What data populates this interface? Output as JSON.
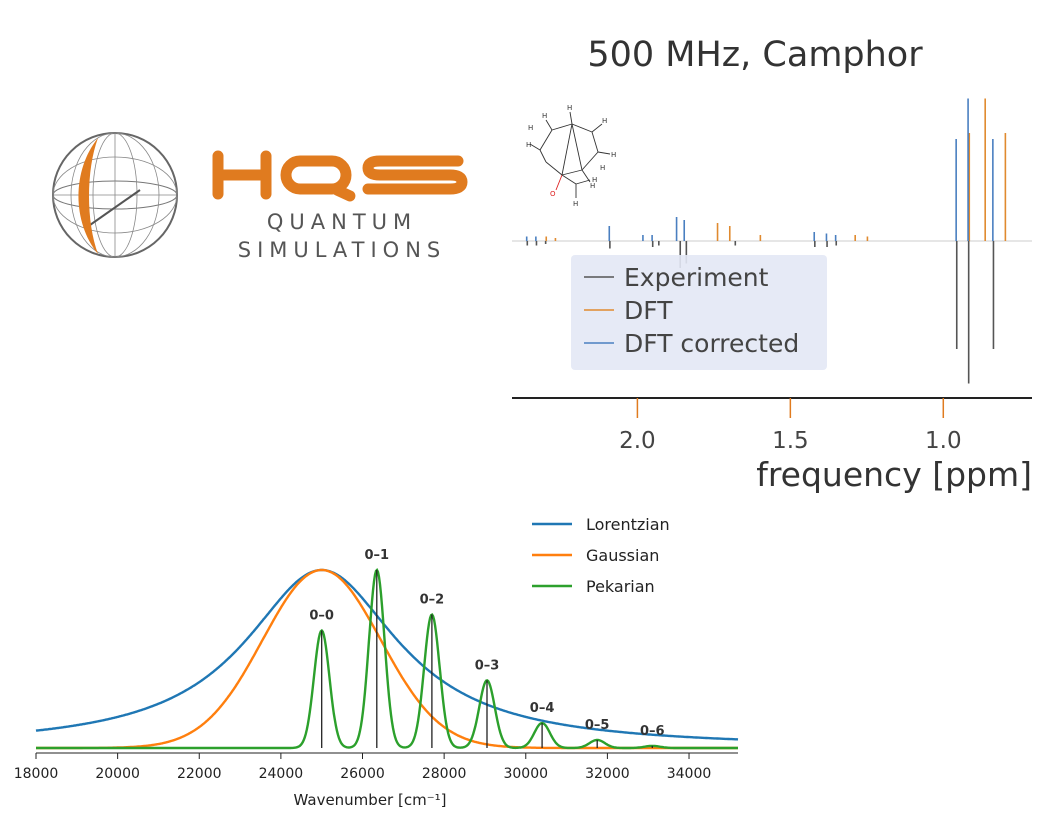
{
  "logo": {
    "wordmark": "HQS",
    "line1": "QUANTUM",
    "line2": "SIMULATIONS",
    "brand_color": "#e07b1f",
    "globe_color": "#666666"
  },
  "chart_data": [
    {
      "type": "line",
      "title": "500 MHz, Camphor",
      "xlabel": "frequency [ppm]",
      "ylabel": "",
      "x_ticks": [
        "2.0",
        "1.5",
        "1.0"
      ],
      "x_tick_values": [
        2.0,
        1.5,
        1.0
      ],
      "xlim": [
        2.41,
        0.71
      ],
      "x_reversed": true,
      "legend_position": "center-left",
      "series": [
        {
          "name": "Experiment",
          "color": "#555555",
          "peaks": [
            {
              "x": 2.36,
              "y": -0.03
            },
            {
              "x": 2.33,
              "y": -0.03
            },
            {
              "x": 2.3,
              "y": -0.02
            },
            {
              "x": 2.09,
              "y": -0.05
            },
            {
              "x": 1.95,
              "y": -0.04
            },
            {
              "x": 1.93,
              "y": -0.03
            },
            {
              "x": 1.86,
              "y": -0.18
            },
            {
              "x": 1.84,
              "y": -0.15
            },
            {
              "x": 1.68,
              "y": -0.03
            },
            {
              "x": 1.42,
              "y": -0.04
            },
            {
              "x": 1.38,
              "y": -0.04
            },
            {
              "x": 1.35,
              "y": -0.03
            },
            {
              "x": 0.956,
              "y": -0.72
            },
            {
              "x": 0.917,
              "y": -0.95
            },
            {
              "x": 0.836,
              "y": -0.72
            }
          ]
        },
        {
          "name": "DFT",
          "color": "#e08a2f",
          "peaks": [
            {
              "x": 2.3,
              "y": 0.03
            },
            {
              "x": 2.27,
              "y": 0.02
            },
            {
              "x": 1.74,
              "y": 0.12
            },
            {
              "x": 1.7,
              "y": 0.1
            },
            {
              "x": 1.6,
              "y": 0.04
            },
            {
              "x": 1.29,
              "y": 0.04
            },
            {
              "x": 1.25,
              "y": 0.03
            },
            {
              "x": 0.917,
              "y": 0.72
            },
            {
              "x": 0.865,
              "y": 0.95
            },
            {
              "x": 0.799,
              "y": 0.72
            }
          ]
        },
        {
          "name": "DFT corrected",
          "color": "#4a7fc0",
          "peaks": [
            {
              "x": 2.36,
              "y": 0.03
            },
            {
              "x": 2.33,
              "y": 0.03
            },
            {
              "x": 2.09,
              "y": 0.1
            },
            {
              "x": 1.98,
              "y": 0.04
            },
            {
              "x": 1.95,
              "y": 0.04
            },
            {
              "x": 1.87,
              "y": 0.16
            },
            {
              "x": 1.845,
              "y": 0.14
            },
            {
              "x": 1.42,
              "y": 0.06
            },
            {
              "x": 1.38,
              "y": 0.05
            },
            {
              "x": 1.35,
              "y": 0.04
            },
            {
              "x": 0.956,
              "y": 0.68
            },
            {
              "x": 0.917,
              "y": 0.95
            },
            {
              "x": 0.836,
              "y": 0.68
            }
          ]
        }
      ],
      "inset": "camphor molecule structure"
    },
    {
      "type": "line",
      "title": "",
      "xlabel": "Wavenumber [cm⁻¹]",
      "ylabel": "",
      "xlim": [
        18000,
        35200
      ],
      "ylim": [
        0,
        1.05
      ],
      "x_ticks": [
        "18000",
        "20000",
        "22000",
        "24000",
        "26000",
        "28000",
        "30000",
        "32000",
        "34000"
      ],
      "x_tick_values": [
        18000,
        20000,
        22000,
        24000,
        26000,
        28000,
        30000,
        32000,
        34000
      ],
      "legend_position": "top-right",
      "series": [
        {
          "name": "Lorentzian",
          "color": "#1f77b4",
          "shape": "lorentzian",
          "center": 25000,
          "height": 1.0,
          "hwhm": 2300,
          "baseline": 0.0
        },
        {
          "name": "Gaussian",
          "color": "#ff7f0e",
          "shape": "gaussian",
          "center": 25000,
          "height": 1.0,
          "sigma": 1450
        },
        {
          "name": "Pekarian",
          "color": "#2ca02c",
          "shape": "sum_of_gaussians",
          "sigma": 190,
          "peaks": [
            {
              "label": "0–0",
              "x": 25000,
              "y": 0.66
            },
            {
              "label": "0–1",
              "x": 26350,
              "y": 1.0
            },
            {
              "label": "0–2",
              "x": 27700,
              "y": 0.75
            },
            {
              "label": "0–3",
              "x": 29050,
              "y": 0.38
            },
            {
              "label": "0–4",
              "x": 30400,
              "y": 0.14
            },
            {
              "label": "0–5",
              "x": 31750,
              "y": 0.045
            },
            {
              "label": "0–6",
              "x": 33100,
              "y": 0.012
            }
          ]
        }
      ]
    }
  ]
}
